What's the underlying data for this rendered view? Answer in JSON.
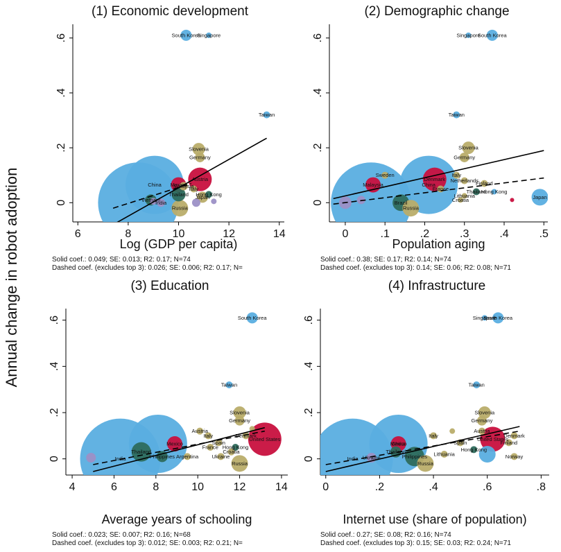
{
  "figure": {
    "ylabel": "Annual change in robot adoption",
    "colors": {
      "blue": "#5aaee0",
      "red": "#c8103e",
      "olive": "#b9ad6a",
      "teal": "#2e6b5c",
      "purple": "#9c90c6",
      "line": "#000000"
    }
  },
  "chart_data": [
    {
      "type": "scatter",
      "title": "(1) Economic development",
      "xlabel": "Log (GDP per capita)",
      "xlim": [
        5.8,
        14.2
      ],
      "ylim": [
        -0.07,
        0.65
      ],
      "xticks": [
        "6",
        "8",
        "10",
        "12",
        "14"
      ],
      "xtick_values": [
        6,
        8,
        10,
        12,
        14
      ],
      "yticks": [
        "0",
        ".2",
        ".4",
        ".6"
      ],
      "ytick_values": [
        0,
        0.2,
        0.4,
        0.6
      ],
      "solid_line": {
        "x": [
          7.4,
          13.5
        ],
        "y": [
          -0.08,
          0.235
        ]
      },
      "dashed_line": {
        "x": [
          7.4,
          10.5
        ],
        "y": [
          -0.02,
          0.07
        ]
      },
      "notes": [
        "Solid coef.: 0.049; SE: 0.013; R2: 0.17; N=74",
        "Dashed coef. (excludes top 3): 0.026; SE: 0.006; R2: 0.17; N="
      ],
      "points": [
        {
          "x": 8.4,
          "y": 0.0,
          "r": 58,
          "c": "blue",
          "label": ""
        },
        {
          "x": 9.05,
          "y": 0.065,
          "r": 42,
          "c": "blue",
          "label": "China"
        },
        {
          "x": 10.3,
          "y": 0.61,
          "r": 8,
          "c": "blue",
          "label": "South Korea"
        },
        {
          "x": 11.2,
          "y": 0.61,
          "r": 4,
          "c": "blue",
          "label": "Singapore"
        },
        {
          "x": 13.5,
          "y": 0.32,
          "r": 5,
          "c": "blue",
          "label": "Taiwan"
        },
        {
          "x": 10.8,
          "y": 0.195,
          "r": 9,
          "c": "olive",
          "label": "Slovenia"
        },
        {
          "x": 10.85,
          "y": 0.165,
          "r": 7,
          "c": "olive",
          "label": "Germany"
        },
        {
          "x": 10.85,
          "y": 0.085,
          "r": 17,
          "c": "red",
          "label": "Austria"
        },
        {
          "x": 10.0,
          "y": 0.065,
          "r": 11,
          "c": "red",
          "label": "Mexico"
        },
        {
          "x": 10.0,
          "y": 0.03,
          "r": 10,
          "c": "teal",
          "label": "Thailand"
        },
        {
          "x": 8.9,
          "y": 0.01,
          "r": 8,
          "c": "teal",
          "label": "Vietnam"
        },
        {
          "x": 10.05,
          "y": -0.02,
          "r": 12,
          "c": "olive",
          "label": "Russia"
        },
        {
          "x": 10.95,
          "y": 0.02,
          "r": 8,
          "c": "olive",
          "label": "Japan"
        },
        {
          "x": 9.3,
          "y": 0.0,
          "r": 6,
          "c": "purple",
          "label": "India"
        },
        {
          "x": 10.7,
          "y": 0.0,
          "r": 6,
          "c": "purple",
          "label": ""
        },
        {
          "x": 11.4,
          "y": 0.005,
          "r": 4,
          "c": "purple",
          "label": ""
        },
        {
          "x": 10.2,
          "y": 0.06,
          "r": 6,
          "c": "olive",
          "label": "Malaysia"
        },
        {
          "x": 11.2,
          "y": 0.03,
          "r": 5,
          "c": "teal",
          "label": "Hong Kong"
        },
        {
          "x": 9.0,
          "y": 0.005,
          "r": 5,
          "c": "purple",
          "label": ""
        },
        {
          "x": 10.6,
          "y": 0.05,
          "r": 5,
          "c": "olive",
          "label": "Italy"
        }
      ]
    },
    {
      "type": "scatter",
      "title": "(2) Demographic change",
      "xlabel": "Population aging",
      "xlim": [
        -0.04,
        0.51
      ],
      "ylim": [
        -0.07,
        0.65
      ],
      "xticks": [
        "0",
        ".1",
        ".2",
        ".3",
        ".4",
        ".5"
      ],
      "xtick_values": [
        0,
        0.1,
        0.2,
        0.3,
        0.4,
        0.5
      ],
      "yticks": [
        "0",
        ".2",
        ".4",
        ".6"
      ],
      "ytick_values": [
        0,
        0.2,
        0.4,
        0.6
      ],
      "solid_line": {
        "x": [
          -0.03,
          0.5
        ],
        "y": [
          0.015,
          0.19
        ]
      },
      "dashed_line": {
        "x": [
          -0.03,
          0.5
        ],
        "y": [
          -0.005,
          0.09
        ]
      },
      "notes": [
        "Solid coef.: 0.38; SE: 0.17; R2: 0.14; N=74",
        "Dashed coef. (excludes top 3): 0.14; SE: 0.06; R2: 0.08; N=71"
      ],
      "points": [
        {
          "x": 0.065,
          "y": 0.0,
          "r": 58,
          "c": "blue",
          "label": ""
        },
        {
          "x": 0.21,
          "y": 0.065,
          "r": 42,
          "c": "blue",
          "label": "China"
        },
        {
          "x": 0.37,
          "y": 0.61,
          "r": 8,
          "c": "blue",
          "label": "South Korea"
        },
        {
          "x": 0.31,
          "y": 0.61,
          "r": 4,
          "c": "blue",
          "label": "Singapore"
        },
        {
          "x": 0.28,
          "y": 0.32,
          "r": 5,
          "c": "blue",
          "label": "Taiwan"
        },
        {
          "x": 0.49,
          "y": 0.02,
          "r": 12,
          "c": "blue",
          "label": "Japan"
        },
        {
          "x": 0.31,
          "y": 0.2,
          "r": 9,
          "c": "olive",
          "label": "Slovenia"
        },
        {
          "x": 0.3,
          "y": 0.165,
          "r": 7,
          "c": "olive",
          "label": "Germany"
        },
        {
          "x": 0.225,
          "y": 0.085,
          "r": 17,
          "c": "red",
          "label": "Denmark"
        },
        {
          "x": 0.07,
          "y": 0.065,
          "r": 11,
          "c": "red",
          "label": "Malaysia"
        },
        {
          "x": 0.14,
          "y": 0.0,
          "r": 12,
          "c": "teal",
          "label": "Brazil"
        },
        {
          "x": 0.165,
          "y": -0.02,
          "r": 12,
          "c": "olive",
          "label": "Russia"
        },
        {
          "x": 0.0,
          "y": 0.0,
          "r": 9,
          "c": "purple",
          "label": ""
        },
        {
          "x": 0.04,
          "y": 0.01,
          "r": 6,
          "c": "purple",
          "label": ""
        },
        {
          "x": 0.42,
          "y": 0.01,
          "r": 3,
          "c": "red",
          "label": ""
        },
        {
          "x": 0.1,
          "y": 0.1,
          "r": 5,
          "c": "olive",
          "label": "Sweden"
        },
        {
          "x": 0.28,
          "y": 0.1,
          "r": 5,
          "c": "olive",
          "label": "Italy"
        },
        {
          "x": 0.3,
          "y": 0.08,
          "r": 5,
          "c": "olive",
          "label": "Netherlands"
        },
        {
          "x": 0.35,
          "y": 0.07,
          "r": 5,
          "c": "olive",
          "label": "Finland"
        },
        {
          "x": 0.33,
          "y": 0.04,
          "r": 5,
          "c": "teal",
          "label": "Thailand"
        },
        {
          "x": 0.3,
          "y": 0.025,
          "r": 4,
          "c": "olive",
          "label": "Lithuania"
        },
        {
          "x": 0.29,
          "y": 0.01,
          "r": 4,
          "c": "olive",
          "label": "Croatia"
        },
        {
          "x": 0.24,
          "y": 0.05,
          "r": 5,
          "c": "olive",
          "label": "France"
        },
        {
          "x": 0.375,
          "y": 0.04,
          "r": 4,
          "c": "blue",
          "label": "Hong Kong"
        }
      ]
    },
    {
      "type": "scatter",
      "title": "(3) Education",
      "xlabel": "Average years of schooling",
      "xlim": [
        3.7,
        14.3
      ],
      "ylim": [
        -0.07,
        0.65
      ],
      "xticks": [
        "4",
        "6",
        "8",
        "10",
        "12",
        "14"
      ],
      "xtick_values": [
        4,
        6,
        8,
        10,
        12,
        14
      ],
      "yticks": [
        "0",
        ".2",
        ".4",
        ".6"
      ],
      "ytick_values": [
        0,
        0.2,
        0.4,
        0.6
      ],
      "solid_line": {
        "x": [
          5.0,
          13.2
        ],
        "y": [
          -0.055,
          0.135
        ]
      },
      "dashed_line": {
        "x": [
          5.0,
          13.2
        ],
        "y": [
          -0.025,
          0.12
        ]
      },
      "notes": [
        "Solid coef.: 0.023; SE: 0.007; R2: 0.16; N=68",
        "Dashed coef. (excludes top 3): 0.012; SE: 0.003; R2: 0.21; N="
      ],
      "points": [
        {
          "x": 6.3,
          "y": 0.0,
          "r": 58,
          "c": "blue",
          "label": "India"
        },
        {
          "x": 8.1,
          "y": 0.065,
          "r": 42,
          "c": "blue",
          "label": ""
        },
        {
          "x": 12.6,
          "y": 0.61,
          "r": 8,
          "c": "blue",
          "label": "South Korea"
        },
        {
          "x": 11.5,
          "y": 0.32,
          "r": 5,
          "c": "blue",
          "label": "Taiwan"
        },
        {
          "x": 12.0,
          "y": 0.2,
          "r": 9,
          "c": "olive",
          "label": "Slovenia"
        },
        {
          "x": 12.0,
          "y": 0.165,
          "r": 7,
          "c": "olive",
          "label": "Germany"
        },
        {
          "x": 13.2,
          "y": 0.085,
          "r": 24,
          "c": "red",
          "label": "United States"
        },
        {
          "x": 8.9,
          "y": 0.065,
          "r": 11,
          "c": "red",
          "label": "Mexico"
        },
        {
          "x": 7.3,
          "y": 0.03,
          "r": 14,
          "c": "teal",
          "label": "Thailand"
        },
        {
          "x": 8.3,
          "y": 0.01,
          "r": 8,
          "c": "teal",
          "label": "Philippines"
        },
        {
          "x": 12.0,
          "y": -0.02,
          "r": 12,
          "c": "olive",
          "label": "Russia"
        },
        {
          "x": 4.9,
          "y": 0.005,
          "r": 7,
          "c": "purple",
          "label": ""
        },
        {
          "x": 10.1,
          "y": 0.12,
          "r": 5,
          "c": "olive",
          "label": "Austria"
        },
        {
          "x": 10.5,
          "y": 0.1,
          "r": 5,
          "c": "olive",
          "label": "Italy"
        },
        {
          "x": 11.0,
          "y": 0.07,
          "r": 5,
          "c": "olive",
          "label": "Spain"
        },
        {
          "x": 11.8,
          "y": 0.05,
          "r": 5,
          "c": "teal",
          "label": "Hong Kong"
        },
        {
          "x": 11.1,
          "y": 0.01,
          "r": 5,
          "c": "olive",
          "label": "Ukraine"
        },
        {
          "x": 11.6,
          "y": 0.03,
          "r": 5,
          "c": "olive",
          "label": "Croatia"
        },
        {
          "x": 12.3,
          "y": 0.1,
          "r": 5,
          "c": "olive",
          "label": "Denmark"
        },
        {
          "x": 9.5,
          "y": 0.01,
          "r": 5,
          "c": "olive",
          "label": "Argentina"
        },
        {
          "x": 10.6,
          "y": 0.05,
          "r": 5,
          "c": "olive",
          "label": "France"
        },
        {
          "x": 12.6,
          "y": 0.13,
          "r": 4,
          "c": "olive",
          "label": ""
        }
      ]
    },
    {
      "type": "scatter",
      "title": "(4) Infrastructure",
      "xlabel": "Internet use (share of population)",
      "xlim": [
        -0.02,
        0.83
      ],
      "ylim": [
        -0.07,
        0.65
      ],
      "xticks": [
        "0",
        ".2",
        ".4",
        ".6",
        ".8"
      ],
      "xtick_values": [
        0,
        0.2,
        0.4,
        0.6,
        0.8
      ],
      "yticks": [
        "0",
        ".2",
        ".4",
        ".6"
      ],
      "ytick_values": [
        0,
        0.2,
        0.4,
        0.6
      ],
      "solid_line": {
        "x": [
          0.0,
          0.72
        ],
        "y": [
          -0.055,
          0.14
        ]
      },
      "dashed_line": {
        "x": [
          0.0,
          0.72
        ],
        "y": [
          -0.025,
          0.12
        ]
      },
      "notes": [
        "Solid coef.: 0.27; SE: 0.08; R2: 0.16; N=74",
        "Dashed coef. (excludes top 3): 0.15; SE: 0.03; R2: 0.24; N=71"
      ],
      "points": [
        {
          "x": 0.1,
          "y": 0.0,
          "r": 58,
          "c": "blue",
          "label": "India"
        },
        {
          "x": 0.27,
          "y": 0.065,
          "r": 42,
          "c": "blue",
          "label": "China"
        },
        {
          "x": 0.64,
          "y": 0.61,
          "r": 8,
          "c": "blue",
          "label": "South Korea"
        },
        {
          "x": 0.59,
          "y": 0.61,
          "r": 4,
          "c": "blue",
          "label": "Singapore"
        },
        {
          "x": 0.56,
          "y": 0.32,
          "r": 5,
          "c": "blue",
          "label": "Taiwan"
        },
        {
          "x": 0.59,
          "y": 0.2,
          "r": 9,
          "c": "olive",
          "label": "Slovenia"
        },
        {
          "x": 0.58,
          "y": 0.165,
          "r": 7,
          "c": "olive",
          "label": "Germany"
        },
        {
          "x": 0.62,
          "y": 0.085,
          "r": 18,
          "c": "red",
          "label": "United States"
        },
        {
          "x": 0.27,
          "y": 0.065,
          "r": 11,
          "c": "red",
          "label": "Mexico"
        },
        {
          "x": 0.33,
          "y": 0.01,
          "r": 14,
          "c": "teal",
          "label": "Philippines"
        },
        {
          "x": 0.26,
          "y": 0.03,
          "r": 8,
          "c": "teal",
          "label": "Thailand"
        },
        {
          "x": 0.37,
          "y": -0.02,
          "r": 12,
          "c": "olive",
          "label": "Russia"
        },
        {
          "x": 0.6,
          "y": 0.02,
          "r": 12,
          "c": "blue",
          "label": ""
        },
        {
          "x": 0.17,
          "y": 0.005,
          "r": 7,
          "c": "purple",
          "label": "Ukraine"
        },
        {
          "x": 0.4,
          "y": 0.1,
          "r": 5,
          "c": "olive",
          "label": "Italy"
        },
        {
          "x": 0.5,
          "y": 0.07,
          "r": 5,
          "c": "olive",
          "label": "Spain"
        },
        {
          "x": 0.44,
          "y": 0.02,
          "r": 5,
          "c": "olive",
          "label": "Lithuania"
        },
        {
          "x": 0.55,
          "y": 0.04,
          "r": 5,
          "c": "teal",
          "label": "Hong Kong"
        },
        {
          "x": 0.68,
          "y": 0.07,
          "r": 5,
          "c": "olive",
          "label": "Finland"
        },
        {
          "x": 0.7,
          "y": 0.01,
          "r": 5,
          "c": "olive",
          "label": "Norway"
        },
        {
          "x": 0.7,
          "y": 0.1,
          "r": 5,
          "c": "olive",
          "label": "Denmark"
        },
        {
          "x": 0.58,
          "y": 0.12,
          "r": 5,
          "c": "olive",
          "label": "Austria"
        },
        {
          "x": 0.47,
          "y": 0.12,
          "r": 4,
          "c": "olive",
          "label": ""
        }
      ]
    }
  ]
}
